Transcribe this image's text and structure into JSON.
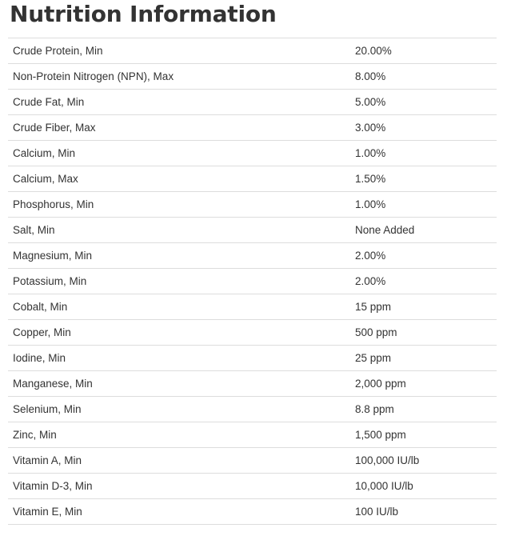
{
  "title": "Nutrition Information",
  "rows": [
    {
      "label": "Crude Protein, Min",
      "value": "20.00%"
    },
    {
      "label": "Non-Protein Nitrogen (NPN), Max",
      "value": "8.00%"
    },
    {
      "label": "Crude Fat, Min",
      "value": "5.00%"
    },
    {
      "label": "Crude Fiber, Max",
      "value": "3.00%"
    },
    {
      "label": "Calcium, Min",
      "value": "1.00%"
    },
    {
      "label": "Calcium, Max",
      "value": "1.50%"
    },
    {
      "label": "Phosphorus, Min",
      "value": "1.00%"
    },
    {
      "label": "Salt, Min",
      "value": "None Added"
    },
    {
      "label": "Magnesium, Min",
      "value": "2.00%"
    },
    {
      "label": "Potassium, Min",
      "value": "2.00%"
    },
    {
      "label": "Cobalt, Min",
      "value": "15 ppm"
    },
    {
      "label": "Copper, Min",
      "value": "500 ppm"
    },
    {
      "label": "Iodine, Min",
      "value": "25 ppm"
    },
    {
      "label": "Manganese, Min",
      "value": "2,000 ppm"
    },
    {
      "label": "Selenium, Min",
      "value": "8.8 ppm"
    },
    {
      "label": "Zinc, Min",
      "value": "1,500 ppm"
    },
    {
      "label": "Vitamin A, Min",
      "value": "100,000 IU/lb"
    },
    {
      "label": "Vitamin D-3, Min",
      "value": "10,000 IU/lb"
    },
    {
      "label": "Vitamin E, Min",
      "value": "100 IU/lb"
    }
  ]
}
